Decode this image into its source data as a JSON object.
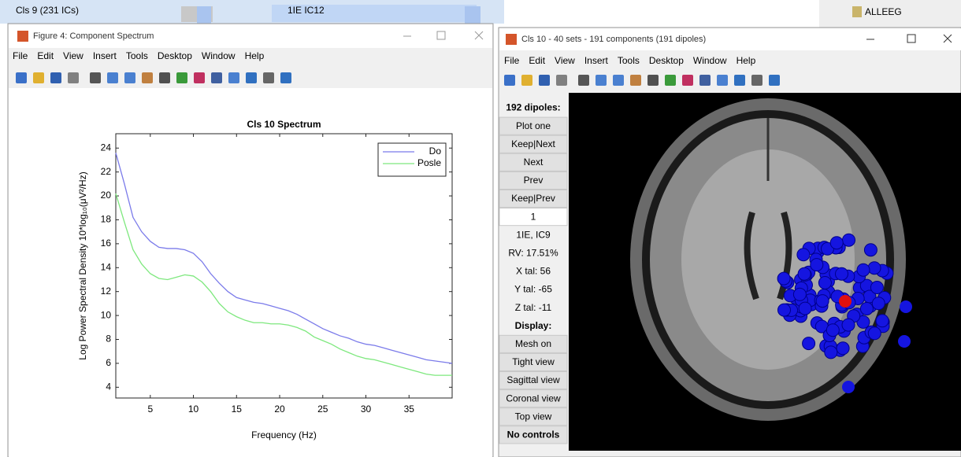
{
  "background": {
    "left_label": "Cls 9 (231 ICs)",
    "mid_label": "1IE IC12",
    "right_label": "ALLEEG"
  },
  "figure4": {
    "title": "Figure 4: Component Spectrum",
    "menu": [
      "File",
      "Edit",
      "View",
      "Insert",
      "Tools",
      "Desktop",
      "Window",
      "Help"
    ]
  },
  "chart_data": {
    "type": "line",
    "title": "Cls 10 Spectrum",
    "x_label": "Frequency (Hz)",
    "y_label": "Log Power Spectral Density 10*log₁₀(μV²/Hz)",
    "x": [
      1,
      2,
      3,
      4,
      5,
      6,
      7,
      8,
      9,
      10,
      11,
      12,
      13,
      14,
      15,
      16,
      17,
      18,
      19,
      20,
      21,
      22,
      23,
      24,
      25,
      26,
      27,
      28,
      29,
      30,
      31,
      32,
      33,
      34,
      35,
      36,
      37,
      38,
      39,
      40
    ],
    "series": [
      {
        "name": "Do",
        "color": "#7b7bea",
        "values": [
          23.6,
          21,
          18.2,
          17,
          16.2,
          15.7,
          15.6,
          15.6,
          15.5,
          15.2,
          14.5,
          13.5,
          12.7,
          12,
          11.5,
          11.3,
          11.1,
          11,
          10.8,
          10.6,
          10.4,
          10.1,
          9.7,
          9.3,
          8.9,
          8.6,
          8.3,
          8.1,
          7.8,
          7.6,
          7.5,
          7.3,
          7.1,
          6.9,
          6.7,
          6.5,
          6.3,
          6.2,
          6.1,
          6.0
        ]
      },
      {
        "name": "Posle",
        "color": "#7ee87e",
        "values": [
          20.2,
          17.8,
          15.5,
          14.3,
          13.5,
          13.1,
          13,
          13.2,
          13.4,
          13.3,
          12.8,
          12,
          11,
          10.3,
          9.9,
          9.6,
          9.4,
          9.4,
          9.3,
          9.3,
          9.2,
          9,
          8.7,
          8.2,
          7.9,
          7.6,
          7.2,
          6.9,
          6.6,
          6.4,
          6.3,
          6.1,
          5.9,
          5.7,
          5.5,
          5.3,
          5.1,
          5.0,
          5.0,
          5.0
        ]
      }
    ],
    "xlim": [
      1,
      40
    ],
    "xticks": [
      5,
      10,
      15,
      20,
      25,
      30,
      35
    ],
    "ylim": [
      3.1,
      25.2
    ],
    "yticks": [
      4,
      6,
      8,
      10,
      12,
      14,
      16,
      18,
      20,
      22,
      24
    ],
    "legend": "top-right",
    "grid": false
  },
  "dipole_window": {
    "title": "Cls 10 - 40 sets - 191 components (191 dipoles)",
    "menu": [
      "File",
      "Edit",
      "View",
      "Insert",
      "Tools",
      "Desktop",
      "Window",
      "Help"
    ],
    "panel": [
      "192 dipoles:",
      "Plot one",
      "Keep|Next",
      "Next",
      "Prev",
      "Keep|Prev",
      "1",
      "1IE, IC9",
      "RV: 17.51%",
      "X tal: 56",
      "Y tal: -65",
      "Z tal: -11",
      "Display:",
      "Mesh on",
      "Tight view",
      "Sagittal view",
      "Coronal view",
      "Top view",
      "No controls"
    ]
  }
}
